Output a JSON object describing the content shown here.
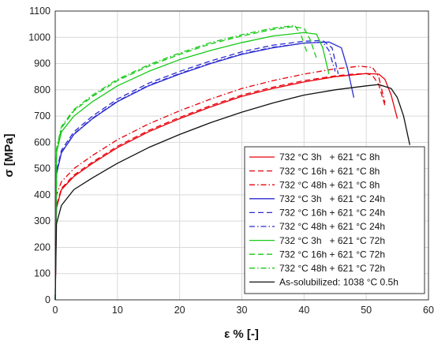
{
  "chart_data": {
    "type": "line",
    "xlabel": "ε % [-]",
    "ylabel": "σ [MPa]",
    "xlim": [
      0,
      60
    ],
    "ylim": [
      0,
      1100
    ],
    "xticks": [
      0,
      10,
      20,
      30,
      40,
      50,
      60
    ],
    "yticks": [
      0,
      100,
      200,
      300,
      400,
      500,
      600,
      700,
      800,
      900,
      1000,
      1100
    ],
    "grid": true,
    "legend_position": "bottom-right",
    "series": [
      {
        "name": "732 °C 3h   + 621 °C 8h",
        "color": "#e8000b",
        "dash": "solid",
        "x": [
          0,
          0.2,
          1,
          3,
          6,
          10,
          15,
          20,
          25,
          30,
          35,
          40,
          45,
          50,
          52,
          53,
          54,
          55
        ],
        "y": [
          0,
          350,
          420,
          470,
          520,
          580,
          640,
          690,
          735,
          775,
          805,
          830,
          850,
          862,
          860,
          840,
          780,
          690
        ]
      },
      {
        "name": "732 °C 16h + 621 °C 8h",
        "color": "#e8000b",
        "dash": "dashed",
        "x": [
          0,
          0.2,
          1,
          3,
          6,
          10,
          15,
          20,
          25,
          30,
          35,
          40,
          45,
          48,
          50,
          51,
          52,
          53
        ],
        "y": [
          0,
          360,
          425,
          475,
          525,
          585,
          645,
          695,
          740,
          780,
          810,
          835,
          853,
          860,
          862,
          855,
          820,
          740
        ]
      },
      {
        "name": "732 °C 48h + 621 °C 8h",
        "color": "#e8000b",
        "dash": "dashdot",
        "x": [
          0,
          0.2,
          1,
          3,
          6,
          10,
          15,
          20,
          25,
          30,
          35,
          40,
          45,
          49,
          51,
          52,
          53
        ],
        "y": [
          0,
          400,
          450,
          500,
          550,
          610,
          670,
          720,
          765,
          805,
          835,
          860,
          880,
          890,
          885,
          850,
          750
        ]
      },
      {
        "name": "732 °C 3h   + 621 °C 24h",
        "color": "#2b2bd0",
        "dash": "solid",
        "x": [
          0,
          0.2,
          1,
          3,
          6,
          10,
          15,
          20,
          25,
          30,
          35,
          40,
          44,
          46,
          47,
          48
        ],
        "y": [
          0,
          480,
          560,
          630,
          690,
          755,
          815,
          860,
          900,
          935,
          960,
          978,
          982,
          960,
          880,
          770
        ]
      },
      {
        "name": "732 °C 16h + 621 °C 24h",
        "color": "#2b2bd0",
        "dash": "dashed",
        "x": [
          0,
          0.2,
          1,
          3,
          6,
          10,
          15,
          20,
          25,
          30,
          35,
          40,
          43,
          44.5,
          45.5
        ],
        "y": [
          0,
          490,
          570,
          640,
          700,
          765,
          825,
          870,
          910,
          945,
          970,
          985,
          988,
          960,
          860
        ]
      },
      {
        "name": "732 °C 48h + 621 °C 24h",
        "color": "#2b2bd0",
        "dash": "dashdot",
        "x": [
          0,
          0.2,
          1,
          3,
          6,
          10,
          15,
          20,
          25,
          30,
          35,
          40,
          43,
          44,
          45
        ],
        "y": [
          0,
          480,
          562,
          632,
          692,
          757,
          817,
          862,
          902,
          937,
          962,
          978,
          982,
          950,
          870
        ]
      },
      {
        "name": "732 °C 3h   + 621 °C 72h",
        "color": "#16c916",
        "dash": "solid",
        "x": [
          0,
          0.2,
          1,
          3,
          6,
          10,
          15,
          20,
          25,
          30,
          35,
          40,
          42,
          43,
          44
        ],
        "y": [
          0,
          560,
          640,
          700,
          755,
          815,
          870,
          915,
          950,
          980,
          1005,
          1018,
          1012,
          960,
          860
        ]
      },
      {
        "name": "732 °C 16h + 621 °C 72h",
        "color": "#16c916",
        "dash": "dashed",
        "x": [
          0,
          0.2,
          1,
          3,
          6,
          10,
          15,
          20,
          25,
          30,
          35,
          38,
          40,
          41,
          42
        ],
        "y": [
          0,
          570,
          655,
          720,
          775,
          835,
          890,
          935,
          975,
          1005,
          1030,
          1040,
          1035,
          990,
          920
        ]
      },
      {
        "name": "732 °C 48h + 621 °C 72h",
        "color": "#16c916",
        "dash": "dashdot",
        "x": [
          0,
          0.2,
          1,
          3,
          6,
          10,
          15,
          20,
          25,
          30,
          35,
          38.5,
          39.5,
          40.5
        ],
        "y": [
          0,
          575,
          660,
          725,
          780,
          840,
          895,
          940,
          980,
          1010,
          1035,
          1045,
          1010,
          940
        ]
      },
      {
        "name": "As-solubilized: 1038 °C 0.5h",
        "color": "#111111",
        "dash": "solid",
        "x": [
          0,
          0.2,
          1,
          3,
          6,
          10,
          15,
          20,
          25,
          30,
          35,
          40,
          45,
          50,
          52,
          54,
          55,
          56,
          57
        ],
        "y": [
          0,
          290,
          360,
          420,
          465,
          520,
          580,
          630,
          675,
          715,
          750,
          780,
          800,
          815,
          820,
          805,
          770,
          700,
          590
        ]
      }
    ]
  }
}
